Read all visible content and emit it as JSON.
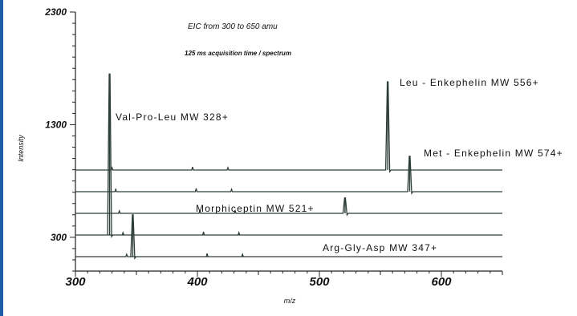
{
  "chart_data": {
    "type": "line",
    "annotations": [
      "EIC from 300 to 650 amu",
      "125 ms acquisition time / spectrum"
    ],
    "xlabel": "m/z",
    "ylabel": "Intensity",
    "xlim": [
      300,
      650
    ],
    "ylim": [
      0,
      2300
    ],
    "x_ticks": [
      "300",
      "400",
      "500",
      "600"
    ],
    "y_ticks": [
      "2300",
      "1300",
      "300"
    ],
    "grid": false,
    "series": [
      {
        "name": "Leu - Enkephelin  MW 556+",
        "peak_mz": 556,
        "peak_intensity": 1680
      },
      {
        "name": "Met - Enkephelin  MW 574+",
        "peak_mz": 574,
        "peak_intensity": 1020
      },
      {
        "name": "Morphiceptin  MW 521+",
        "peak_mz": 521,
        "peak_intensity": 650
      },
      {
        "name": "Val-Pro-Leu  MW 328+",
        "peak_mz": 328,
        "peak_intensity": 1750
      },
      {
        "name": "Arg-Gly-Asp  MW 347+",
        "peak_mz": 347,
        "peak_intensity": 500
      }
    ]
  }
}
